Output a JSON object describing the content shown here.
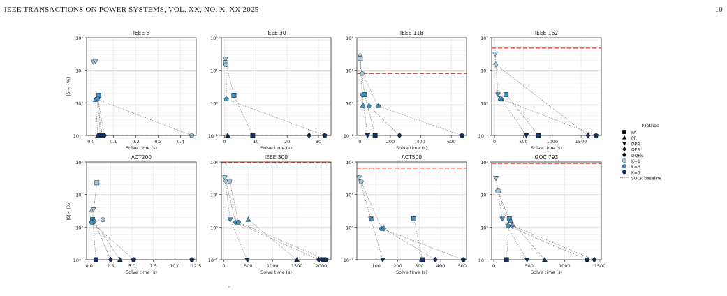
{
  "header": {
    "left": "IEEE TRANSACTIONS ON POWER SYSTEMS, VOL. XX, NO. X, XX 2025",
    "page_number": "10"
  },
  "bottom_fragment": "\" ",
  "legend": {
    "title": "Method",
    "methods": [
      {
        "name": "PA",
        "marker": "square"
      },
      {
        "name": "PR",
        "marker": "triangle-up"
      },
      {
        "name": "DPR",
        "marker": "triangle-down"
      },
      {
        "name": "QPR",
        "marker": "diamond"
      },
      {
        "name": "DQPR",
        "marker": "pentagon"
      }
    ],
    "ks": [
      {
        "name": "K=1",
        "color": "#9ecae1"
      },
      {
        "name": "K=3",
        "color": "#4292c6"
      },
      {
        "name": "K=5",
        "color": "#08306b"
      }
    ],
    "baseline_label": "SOCP baseline"
  },
  "colors": {
    "K1": "#9ecae1",
    "K3": "#4292c6",
    "K5": "#08306b",
    "baseline": "#e8322b",
    "link": "#555555"
  },
  "chart_data": [
    {
      "type": "scatter",
      "title": "IEEE 5",
      "xlabel": "Solve time (s)",
      "ylabel": "|δ|∞ (%)",
      "xlim": [
        -0.02,
        0.47
      ],
      "ylim": [
        0.1,
        100
      ],
      "yscale": "log",
      "xticks": [
        0.0,
        0.1,
        0.2,
        0.3,
        0.4
      ],
      "xtick_labels": [
        "0.0",
        "0.1",
        "0.2",
        "0.3",
        "0.4"
      ],
      "yticks": [
        0.1,
        1,
        10,
        100
      ],
      "ytick_labels": [
        "10⁻¹",
        "10⁰",
        "10¹",
        "10²"
      ],
      "baseline": 0.1,
      "grid": true,
      "points": [
        {
          "m": "triangle-down",
          "k": 1,
          "x": 0.01,
          "y": 18
        },
        {
          "m": "triangle-down",
          "k": 1,
          "x": 0.02,
          "y": 19
        },
        {
          "m": "square",
          "k": 3,
          "x": 0.035,
          "y": 1.7
        },
        {
          "m": "pentagon",
          "k": 3,
          "x": 0.025,
          "y": 1.3
        },
        {
          "m": "triangle-up",
          "k": 3,
          "x": 0.02,
          "y": 1.25
        },
        {
          "m": "diamond",
          "k": 3,
          "x": 0.03,
          "y": 1.35
        },
        {
          "m": "square",
          "k": 5,
          "x": 0.04,
          "y": 0.1
        },
        {
          "m": "pentagon",
          "k": 5,
          "x": 0.05,
          "y": 0.1
        },
        {
          "m": "diamond",
          "k": 5,
          "x": 0.06,
          "y": 0.1
        },
        {
          "m": "triangle-up",
          "k": 5,
          "x": 0.03,
          "y": 0.1
        },
        {
          "m": "pentagon",
          "k": 1,
          "x": 0.45,
          "y": 0.1
        }
      ]
    },
    {
      "type": "scatter",
      "title": "IEEE 30",
      "xlabel": "Solve time (s)",
      "ylabel": "",
      "xlim": [
        -1,
        34
      ],
      "ylim": [
        0.1,
        100
      ],
      "yscale": "log",
      "xticks": [
        0,
        10,
        20,
        30
      ],
      "xtick_labels": [
        "0",
        "10",
        "20",
        "30"
      ],
      "yticks": [
        0.1,
        1,
        10,
        100
      ],
      "ytick_labels": [
        "10⁻¹",
        "10⁰",
        "10¹",
        "10²"
      ],
      "baseline": 0.1,
      "grid": true,
      "points": [
        {
          "m": "triangle-down",
          "k": 1,
          "x": 0.3,
          "y": 22
        },
        {
          "m": "square",
          "k": 1,
          "x": 0.4,
          "y": 17
        },
        {
          "m": "pentagon",
          "k": 1,
          "x": 0.5,
          "y": 15
        },
        {
          "m": "square",
          "k": 3,
          "x": 3,
          "y": 1.7
        },
        {
          "m": "pentagon",
          "k": 3,
          "x": 0.6,
          "y": 1.3
        },
        {
          "m": "square",
          "k": 5,
          "x": 9,
          "y": 0.1
        },
        {
          "m": "triangle-up",
          "k": 5,
          "x": 1,
          "y": 0.1
        },
        {
          "m": "diamond",
          "k": 5,
          "x": 27,
          "y": 0.1
        },
        {
          "m": "pentagon",
          "k": 5,
          "x": 32,
          "y": 0.1
        }
      ]
    },
    {
      "type": "scatter",
      "title": "IEEE 118",
      "xlabel": "Solve time (s)",
      "ylabel": "",
      "xlim": [
        -20,
        700
      ],
      "ylim": [
        0.1,
        100
      ],
      "yscale": "log",
      "xticks": [
        0,
        200,
        400,
        600
      ],
      "xtick_labels": [
        "0",
        "200",
        "400",
        "600"
      ],
      "yticks": [
        0.1,
        1,
        10,
        100
      ],
      "ytick_labels": [
        "10⁻¹",
        "10⁰",
        "10¹",
        "10²"
      ],
      "baseline": 8,
      "grid": true,
      "points": [
        {
          "m": "triangle-down",
          "k": 1,
          "x": 0,
          "y": 28
        },
        {
          "m": "square",
          "k": 1,
          "x": 2,
          "y": 23
        },
        {
          "m": "pentagon",
          "k": 1,
          "x": 15,
          "y": 8
        },
        {
          "m": "triangle-down",
          "k": 3,
          "x": 15,
          "y": 1.7
        },
        {
          "m": "square",
          "k": 3,
          "x": 30,
          "y": 1.8
        },
        {
          "m": "triangle-up",
          "k": 3,
          "x": 20,
          "y": 0.85
        },
        {
          "m": "diamond",
          "k": 3,
          "x": 60,
          "y": 0.8
        },
        {
          "m": "pentagon",
          "k": 3,
          "x": 120,
          "y": 0.8
        },
        {
          "m": "triangle-down",
          "k": 5,
          "x": 50,
          "y": 0.1
        },
        {
          "m": "square",
          "k": 5,
          "x": 100,
          "y": 0.1
        },
        {
          "m": "diamond",
          "k": 5,
          "x": 260,
          "y": 0.1
        },
        {
          "m": "pentagon",
          "k": 5,
          "x": 670,
          "y": 0.1
        }
      ]
    },
    {
      "type": "scatter",
      "title": "IEEE 162",
      "xlabel": "Solve time (s)",
      "ylabel": "",
      "xlim": [
        -50,
        1850
      ],
      "ylim": [
        0.1,
        100
      ],
      "yscale": "log",
      "xticks": [
        0,
        500,
        1000,
        1500
      ],
      "xtick_labels": [
        "0",
        "500",
        "1000",
        "1500"
      ],
      "yticks": [
        0.1,
        1,
        10,
        100
      ],
      "ytick_labels": [
        "10⁻¹",
        "10⁰",
        "10¹",
        "10²"
      ],
      "baseline": 48,
      "grid": true,
      "points": [
        {
          "m": "triangle-down",
          "k": 1,
          "x": 10,
          "y": 32
        },
        {
          "m": "diamond",
          "k": 1,
          "x": 20,
          "y": 15
        },
        {
          "m": "triangle-down",
          "k": 3,
          "x": 60,
          "y": 1.8
        },
        {
          "m": "pentagon",
          "k": 3,
          "x": 120,
          "y": 1.3
        },
        {
          "m": "triangle-up",
          "k": 3,
          "x": 100,
          "y": 1.4
        },
        {
          "m": "square",
          "k": 3,
          "x": 200,
          "y": 1.8
        },
        {
          "m": "triangle-down",
          "k": 5,
          "x": 550,
          "y": 0.1
        },
        {
          "m": "square",
          "k": 5,
          "x": 760,
          "y": 0.1
        },
        {
          "m": "diamond",
          "k": 5,
          "x": 1620,
          "y": 0.1
        },
        {
          "m": "pentagon",
          "k": 5,
          "x": 1760,
          "y": 0.1
        }
      ]
    },
    {
      "type": "scatter",
      "title": "ACT200",
      "xlabel": "Solve time (s)",
      "ylabel": "|δ|∞ (%)",
      "xlim": [
        -0.3,
        12.5
      ],
      "ylim": [
        0.1,
        100
      ],
      "yscale": "log",
      "xticks": [
        0,
        2.5,
        5,
        7.5,
        10,
        12.5
      ],
      "xtick_labels": [
        "0.0",
        "2.5",
        "5.0",
        "7.5",
        "10.0",
        "12.5"
      ],
      "yticks": [
        0.1,
        1,
        10,
        100
      ],
      "ytick_labels": [
        "10⁻¹",
        "10⁰",
        "10¹",
        "10²"
      ],
      "baseline": 0.1,
      "grid": true,
      "points": [
        {
          "m": "square",
          "k": 1,
          "x": 0.9,
          "y": 23
        },
        {
          "m": "triangle-up",
          "k": 1,
          "x": 0.3,
          "y": 3.3
        },
        {
          "m": "triangle-down",
          "k": 1,
          "x": 0.5,
          "y": 3.5
        },
        {
          "m": "pentagon",
          "k": 1,
          "x": 1.6,
          "y": 1.7
        },
        {
          "m": "square",
          "k": 3,
          "x": 0.4,
          "y": 1.7
        },
        {
          "m": "triangle-up",
          "k": 3,
          "x": 0.5,
          "y": 1.6
        },
        {
          "m": "diamond",
          "k": 3,
          "x": 0.6,
          "y": 1.5
        },
        {
          "m": "pentagon",
          "k": 3,
          "x": 0.3,
          "y": 1.4
        },
        {
          "m": "square",
          "k": 5,
          "x": 0.8,
          "y": 0.1
        },
        {
          "m": "triangle-up",
          "k": 5,
          "x": 3.6,
          "y": 0.1
        },
        {
          "m": "diamond",
          "k": 5,
          "x": 2.5,
          "y": 0.1
        },
        {
          "m": "pentagon",
          "k": 5,
          "x": 5.2,
          "y": 0.1
        },
        {
          "m": "pentagon",
          "k": 5,
          "x": 12,
          "y": 0.1
        }
      ]
    },
    {
      "type": "scatter",
      "title": "IEEE 300",
      "xlabel": "Solve time (s)",
      "ylabel": "",
      "xlim": [
        -50,
        2200
      ],
      "ylim": [
        0.1,
        100
      ],
      "yscale": "log",
      "xticks": [
        0,
        500,
        1000,
        1500,
        2000
      ],
      "xtick_labels": [
        "0",
        "500",
        "1000",
        "1500",
        "2000"
      ],
      "yticks": [
        0.1,
        1,
        10,
        100
      ],
      "ytick_labels": [
        "10⁻¹",
        "10⁰",
        "10¹",
        "10²"
      ],
      "baseline": 95,
      "grid": true,
      "points": [
        {
          "m": "triangle-down",
          "k": 1,
          "x": 20,
          "y": 33
        },
        {
          "m": "diamond",
          "k": 1,
          "x": 40,
          "y": 26
        },
        {
          "m": "pentagon",
          "k": 1,
          "x": 120,
          "y": 26
        },
        {
          "m": "triangle-down",
          "k": 3,
          "x": 130,
          "y": 1.7
        },
        {
          "m": "triangle-up",
          "k": 3,
          "x": 500,
          "y": 1.7
        },
        {
          "m": "diamond",
          "k": 3,
          "x": 240,
          "y": 1.4
        },
        {
          "m": "pentagon",
          "k": 3,
          "x": 300,
          "y": 1.4
        },
        {
          "m": "triangle-down",
          "k": 5,
          "x": 480,
          "y": 0.1
        },
        {
          "m": "triangle-up",
          "k": 5,
          "x": 1500,
          "y": 0.1
        },
        {
          "m": "diamond",
          "k": 5,
          "x": 1950,
          "y": 0.1
        },
        {
          "m": "square",
          "k": 5,
          "x": 2050,
          "y": 0.1
        },
        {
          "m": "pentagon",
          "k": 5,
          "x": 2100,
          "y": 0.1
        }
      ]
    },
    {
      "type": "scatter",
      "title": "ACT500",
      "xlabel": "Solve time (s)",
      "ylabel": "",
      "xlim": [
        10,
        520
      ],
      "ylim": [
        0.1,
        100
      ],
      "yscale": "log",
      "xticks": [
        100,
        200,
        300,
        400,
        500
      ],
      "xtick_labels": [
        "100",
        "200",
        "300",
        "400",
        "500"
      ],
      "yticks": [
        0.1,
        1,
        10,
        100
      ],
      "ytick_labels": [
        "10⁻¹",
        "10⁰",
        "10¹",
        "10²"
      ],
      "baseline": 65,
      "grid": true,
      "points": [
        {
          "m": "triangle-down",
          "k": 1,
          "x": 20,
          "y": 33
        },
        {
          "m": "pentagon",
          "k": 1,
          "x": 30,
          "y": 25
        },
        {
          "m": "triangle-down",
          "k": 3,
          "x": 75,
          "y": 1.8
        },
        {
          "m": "triangle-up",
          "k": 3,
          "x": 80,
          "y": 1.8
        },
        {
          "m": "pentagon",
          "k": 3,
          "x": 125,
          "y": 0.9
        },
        {
          "m": "diamond",
          "k": 3,
          "x": 135,
          "y": 0.9
        },
        {
          "m": "square",
          "k": 3,
          "x": 275,
          "y": 1.8
        },
        {
          "m": "triangle-down",
          "k": 5,
          "x": 130,
          "y": 0.1
        },
        {
          "m": "square",
          "k": 5,
          "x": 315,
          "y": 0.1
        },
        {
          "m": "diamond",
          "k": 5,
          "x": 375,
          "y": 0.1
        },
        {
          "m": "pentagon",
          "k": 5,
          "x": 505,
          "y": 0.1
        }
      ]
    },
    {
      "type": "scatter",
      "title": "GOC 793",
      "xlabel": "Solve time (s)",
      "ylabel": "",
      "xlim": [
        -30,
        1520
      ],
      "ylim": [
        0.1,
        100
      ],
      "yscale": "log",
      "xticks": [
        0,
        500,
        1000,
        1500
      ],
      "xtick_labels": [
        "0",
        "500",
        "1000",
        "1500"
      ],
      "yticks": [
        0.1,
        1,
        10,
        100
      ],
      "ytick_labels": [
        "10⁻¹",
        "10⁰",
        "10¹",
        "10²"
      ],
      "baseline": 90,
      "grid": true,
      "points": [
        {
          "m": "triangle-down",
          "k": 1,
          "x": 30,
          "y": 32
        },
        {
          "m": "diamond",
          "k": 1,
          "x": 50,
          "y": 13
        },
        {
          "m": "pentagon",
          "k": 1,
          "x": 70,
          "y": 13
        },
        {
          "m": "triangle-down",
          "k": 3,
          "x": 120,
          "y": 1.8
        },
        {
          "m": "square",
          "k": 3,
          "x": 220,
          "y": 1.8
        },
        {
          "m": "triangle-up",
          "k": 3,
          "x": 240,
          "y": 1.6
        },
        {
          "m": "diamond",
          "k": 3,
          "x": 260,
          "y": 1.1
        },
        {
          "m": "pentagon",
          "k": 3,
          "x": 200,
          "y": 1.1
        },
        {
          "m": "square",
          "k": 5,
          "x": 180,
          "y": 0.1
        },
        {
          "m": "triangle-down",
          "k": 5,
          "x": 470,
          "y": 0.1
        },
        {
          "m": "triangle-up",
          "k": 5,
          "x": 720,
          "y": 0.1
        },
        {
          "m": "pentagon",
          "k": 5,
          "x": 1320,
          "y": 0.1
        },
        {
          "m": "diamond",
          "k": 5,
          "x": 1420,
          "y": 0.1
        }
      ]
    }
  ]
}
